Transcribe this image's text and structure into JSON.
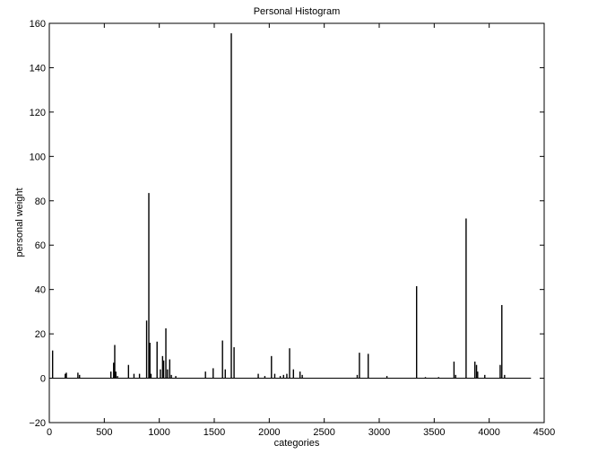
{
  "chart_data": {
    "type": "bar",
    "title": "Personal Histogram",
    "xlabel": "categories",
    "ylabel": "personal weight",
    "xlim": [
      0,
      4500
    ],
    "ylim": [
      -20,
      160
    ],
    "xticks": [
      0,
      500,
      1000,
      1500,
      2000,
      2500,
      3000,
      3500,
      4000,
      4500
    ],
    "yticks": [
      -20,
      0,
      20,
      40,
      60,
      80,
      100,
      120,
      140,
      160
    ],
    "baseline_x_range": [
      0,
      4380
    ],
    "grid": false,
    "legend": "none",
    "bar_color": "#000000",
    "x": [
      30,
      145,
      155,
      260,
      275,
      560,
      585,
      595,
      605,
      620,
      720,
      770,
      820,
      885,
      905,
      915,
      925,
      980,
      1010,
      1030,
      1040,
      1060,
      1075,
      1095,
      1110,
      1150,
      1420,
      1490,
      1575,
      1600,
      1655,
      1680,
      1900,
      1960,
      2020,
      2050,
      2100,
      2130,
      2160,
      2185,
      2220,
      2280,
      2300,
      2800,
      2820,
      2900,
      3070,
      3340,
      3420,
      3540,
      3680,
      3695,
      3790,
      3870,
      3885,
      3895,
      3960,
      4100,
      4115,
      4140
    ],
    "values": [
      12.5,
      2,
      2.5,
      2.5,
      1.5,
      3,
      7,
      15,
      3,
      1,
      6,
      2,
      2,
      26,
      83.5,
      16,
      2,
      16.5,
      4,
      10,
      8,
      22.5,
      4,
      8.5,
      1.5,
      1,
      3,
      4.5,
      17,
      4,
      155.5,
      14,
      2,
      1,
      10,
      2,
      1,
      1.5,
      2,
      13.5,
      4,
      3,
      1.5,
      1.5,
      11.5,
      11,
      1,
      41.5,
      0.5,
      0.5,
      7.5,
      1.5,
      72,
      7.5,
      6,
      3,
      1.5,
      6,
      33,
      1.5
    ]
  }
}
